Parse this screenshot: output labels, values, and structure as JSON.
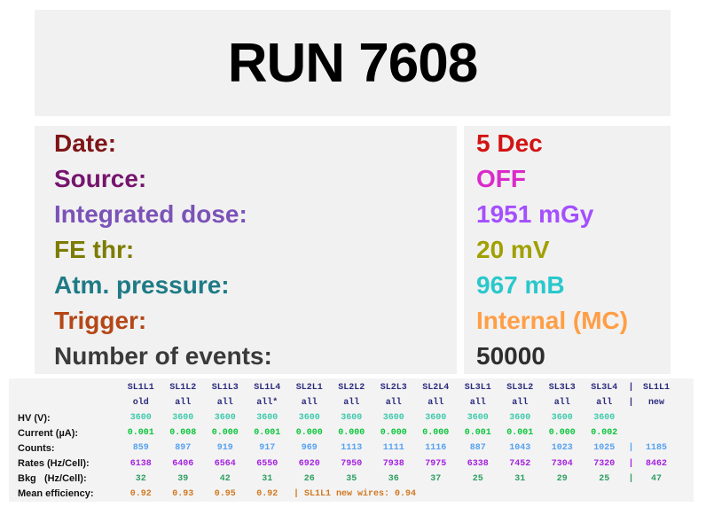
{
  "title": "RUN 7608",
  "colors": {
    "panel_bg": "#F1F1F1",
    "table_bg": "#F3F3F3",
    "title_color": "#000000"
  },
  "info": {
    "rows": [
      {
        "label": "Date:",
        "value": "5 Dec",
        "label_color": "#7E1518",
        "value_color": "#D31212"
      },
      {
        "label": "Source:",
        "value": "OFF",
        "label_color": "#76156D",
        "value_color": "#D92BC9"
      },
      {
        "label": "Integrated dose:",
        "value": "1951 mGy",
        "label_color": "#7B52B8",
        "value_color": "#A44FFF"
      },
      {
        "label": "FE thr:",
        "value": "20 mV",
        "label_color": "#7C7C00",
        "value_color": "#A0A000"
      },
      {
        "label": "Atm. pressure:",
        "value": "967 mB",
        "label_color": "#1E7B85",
        "value_color": "#29C8CC"
      },
      {
        "label": "Trigger:",
        "value": "Internal (MC)",
        "label_color": "#B54716",
        "value_color": "#FF9E45"
      },
      {
        "label": "Number of events:",
        "value": "50000",
        "label_color": "#3A3A3A",
        "value_color": "#2E2E2E"
      }
    ]
  },
  "table": {
    "rows": [
      {
        "label": "",
        "color": "#2B2B7E",
        "values": [
          "SL1L1",
          "SL1L2",
          "SL1L3",
          "SL1L4",
          "SL2L1",
          "SL2L2",
          "SL2L3",
          "SL2L4",
          "SL3L1",
          "SL3L2",
          "SL3L3",
          "SL3L4"
        ],
        "sep": "|",
        "extra": "SL1L1",
        "tail": ""
      },
      {
        "label": "",
        "color": "#2B2B7E",
        "values": [
          "old",
          "all",
          "all",
          "all*",
          "all",
          "all",
          "all",
          "all",
          "all",
          "all",
          "all",
          "all"
        ],
        "sep": "|",
        "extra": "new",
        "tail": ""
      },
      {
        "label": "HV (V):",
        "color": "#3FC9AC",
        "values": [
          "3600",
          "3600",
          "3600",
          "3600",
          "3600",
          "3600",
          "3600",
          "3600",
          "3600",
          "3600",
          "3600",
          "3600"
        ],
        "sep": "",
        "extra": "",
        "tail": ""
      },
      {
        "label": "Current (µA):",
        "color": "#0AC53A",
        "values": [
          "0.001",
          "0.008",
          "0.000",
          "0.001",
          "0.000",
          "0.000",
          "0.000",
          "0.000",
          "0.001",
          "0.001",
          "0.000",
          "0.002"
        ],
        "sep": "",
        "extra": "",
        "tail": ""
      },
      {
        "label": "Counts:",
        "color": "#55A1F2",
        "values": [
          "859",
          "897",
          "919",
          "917",
          "969",
          "1113",
          "1111",
          "1116",
          "887",
          "1043",
          "1023",
          "1025"
        ],
        "sep": "|",
        "extra": "1185",
        "tail": ""
      },
      {
        "label": "Rates (Hz/Cell):",
        "color": "#A520E0",
        "values": [
          "6138",
          "6406",
          "6564",
          "6550",
          "6920",
          "7950",
          "7938",
          "7975",
          "6338",
          "7452",
          "7304",
          "7320"
        ],
        "sep": "|",
        "extra": "8462",
        "tail": ""
      },
      {
        "label": "Bkg   (Hz/Cell):",
        "color": "#2E9E62",
        "values": [
          "32",
          "39",
          "42",
          "31",
          "26",
          "35",
          "36",
          "37",
          "25",
          "31",
          "29",
          "25"
        ],
        "sep": "|",
        "extra": "47",
        "tail": ""
      },
      {
        "label": "Mean efficiency:",
        "color": "#D07820",
        "values": [
          "0.92",
          "0.93",
          "0.95",
          "0.92"
        ],
        "sep": "",
        "extra": "",
        "tail": "| SL1L1 new wires: 0.94"
      }
    ]
  }
}
